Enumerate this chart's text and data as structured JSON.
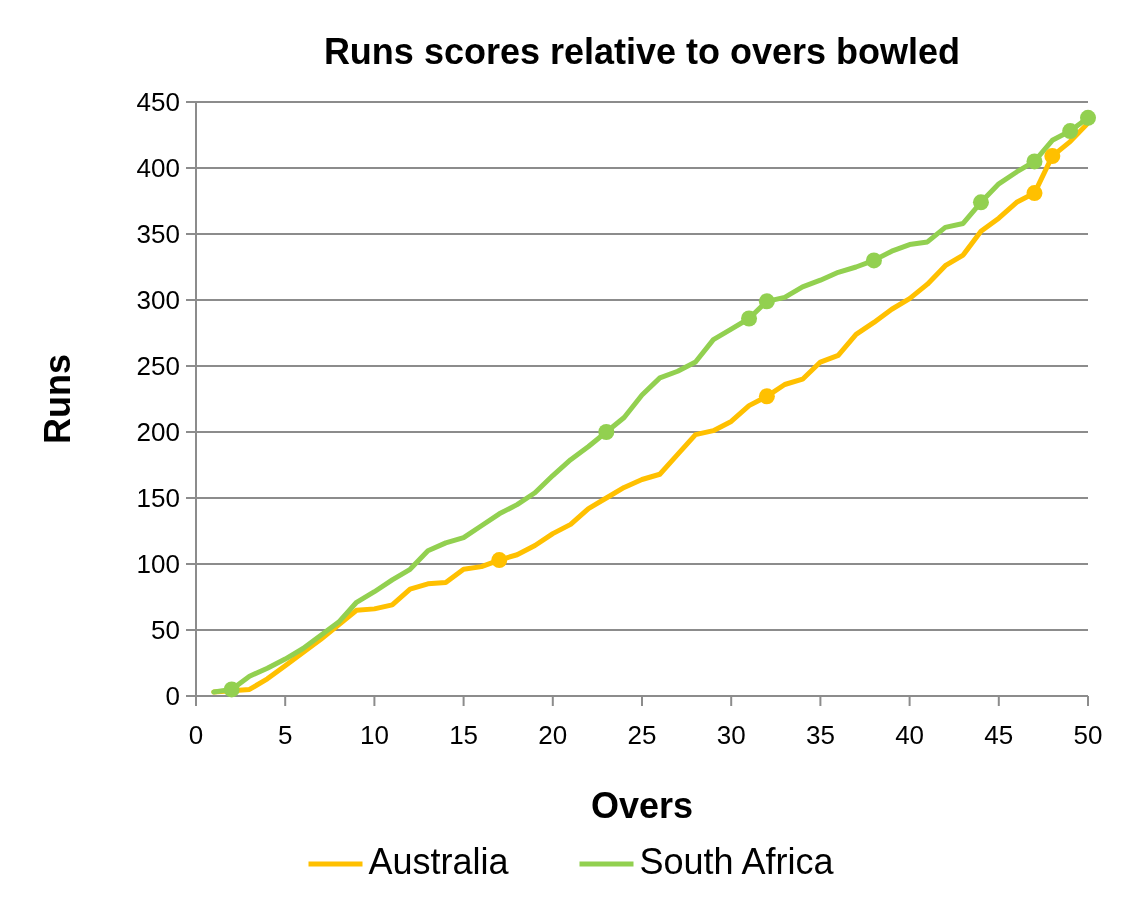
{
  "chart_data": {
    "type": "line",
    "title": "Runs scores relative to overs bowled",
    "xlabel": "Overs",
    "ylabel": "Runs",
    "x": [
      1,
      2,
      3,
      4,
      5,
      6,
      7,
      8,
      9,
      10,
      11,
      12,
      13,
      14,
      15,
      16,
      17,
      18,
      19,
      20,
      21,
      22,
      23,
      24,
      25,
      26,
      27,
      28,
      29,
      30,
      31,
      32,
      33,
      34,
      35,
      36,
      37,
      38,
      39,
      40,
      41,
      42,
      43,
      44,
      45,
      46,
      47,
      48,
      49,
      50
    ],
    "series": [
      {
        "name": "Australia",
        "color": "#ffc000",
        "values": [
          3,
          4,
          5,
          13,
          23,
          33,
          43,
          54,
          65,
          66,
          69,
          81,
          85,
          86,
          96,
          98,
          103,
          107,
          114,
          123,
          130,
          142,
          150,
          158,
          164,
          168,
          183,
          198,
          201,
          208,
          220,
          227,
          236,
          240,
          253,
          258,
          274,
          283,
          293,
          301,
          312,
          326,
          334,
          352,
          362,
          374,
          381,
          409,
          420,
          434
        ]
      },
      {
        "name": "South Africa",
        "color": "#92d050",
        "values": [
          3,
          5,
          15,
          21,
          28,
          36,
          46,
          56,
          71,
          79,
          88,
          96,
          110,
          116,
          120,
          129,
          138,
          145,
          154,
          167,
          179,
          189,
          200,
          211,
          228,
          241,
          246,
          253,
          270,
          278,
          286,
          299,
          302,
          310,
          315,
          321,
          325,
          330,
          337,
          342,
          344,
          355,
          358,
          374,
          388,
          397,
          405,
          421,
          428,
          438
        ]
      },
      {
        "type": "scatter",
        "marker": "circle",
        "color": "#ffc000",
        "x": [
          17,
          32,
          47,
          48
        ],
        "values": [
          103,
          227,
          381,
          409
        ]
      },
      {
        "type": "scatter",
        "marker": "circle",
        "color": "#92d050",
        "x": [
          2,
          23,
          31,
          32,
          38,
          44,
          47,
          49,
          50
        ],
        "values": [
          5,
          200,
          286,
          299,
          330,
          374,
          405,
          428,
          438
        ]
      }
    ],
    "xlim": [
      0,
      50
    ],
    "xticks": [
      0,
      5,
      10,
      15,
      20,
      25,
      30,
      35,
      40,
      45,
      50
    ],
    "ylim": [
      0,
      450
    ],
    "yticks": [
      0,
      50,
      100,
      150,
      200,
      250,
      300,
      350,
      400,
      450
    ],
    "grid": "y",
    "legend": "bottom",
    "line_style": "solid"
  }
}
